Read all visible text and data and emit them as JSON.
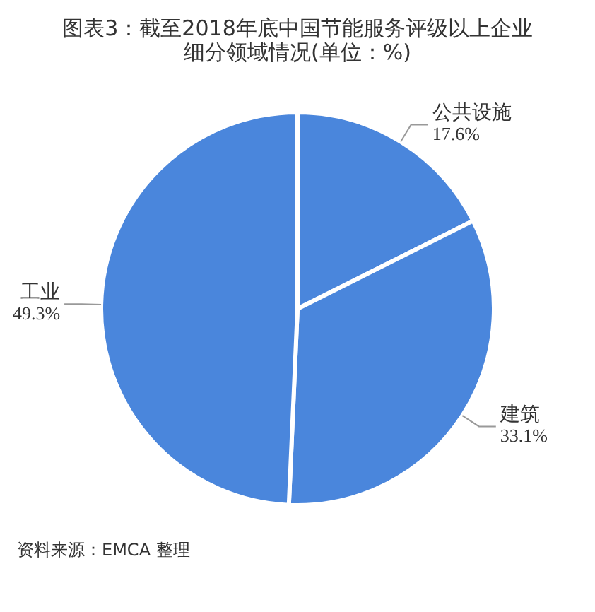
{
  "chart_data": {
    "type": "pie",
    "title": "图表3：截至2018年底中国节能服务评级以上企业细分领域情况(单位：%)",
    "categories": [
      "公共设施",
      "建筑",
      "工业"
    ],
    "values": [
      17.6,
      33.1,
      49.3
    ],
    "colors": [
      "#4a86dc",
      "#4a86dc",
      "#4a86dc"
    ],
    "value_labels": [
      "17.6%",
      "33.1%",
      "49.3%"
    ],
    "legend": false,
    "annotations": [
      "资料来源：EMCA 整理"
    ]
  }
}
